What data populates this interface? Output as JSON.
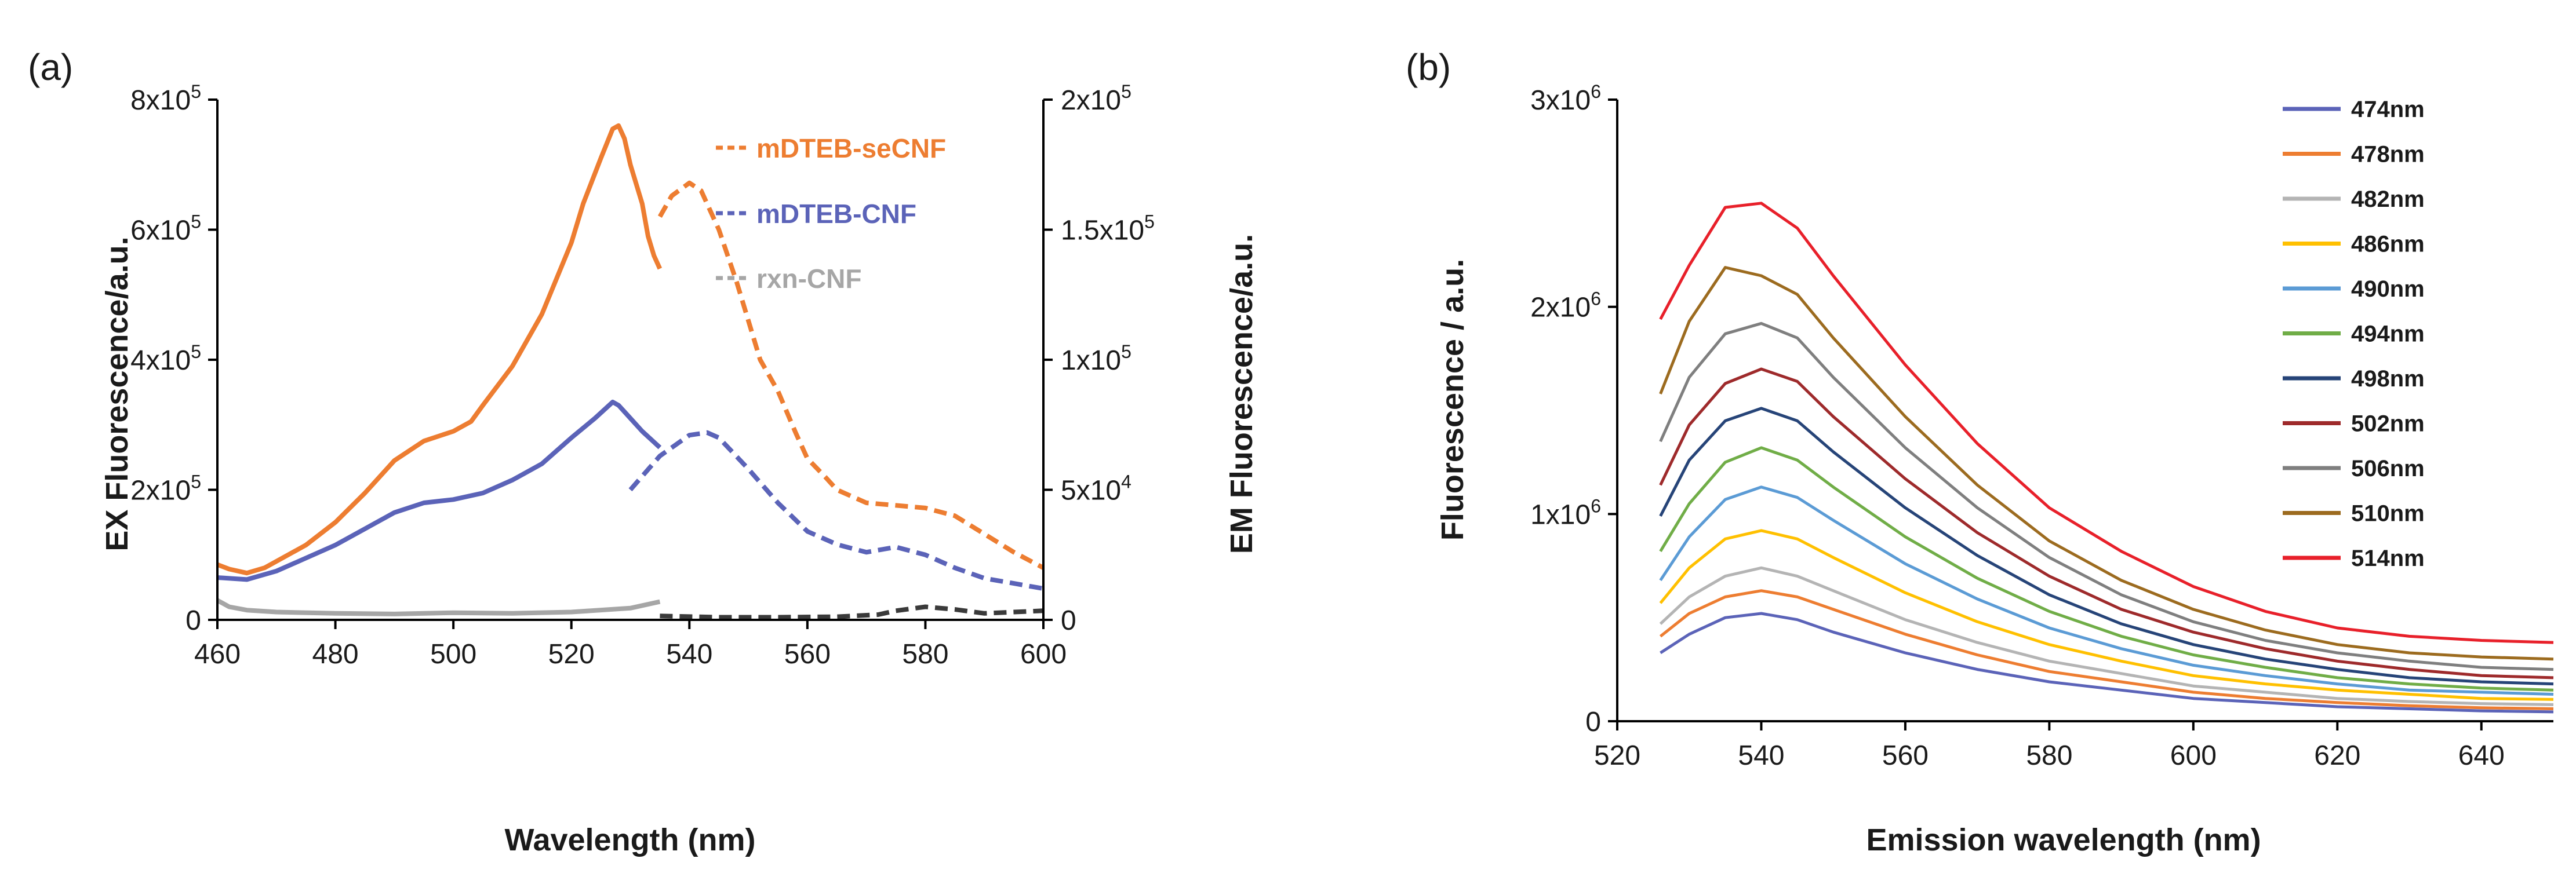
{
  "chart_data": [
    {
      "panel_label": "(a)",
      "type": "line",
      "title": "",
      "xlabel": "Wavelength (nm)",
      "ylabel": "EX Fluorescence/a.u.",
      "y2label": "EM Fluorescence/a.u.",
      "xlim": [
        460,
        600
      ],
      "ylim": [
        0,
        800000
      ],
      "y2lim": [
        0,
        200000
      ],
      "x_ticks": [
        "460",
        "480",
        "500",
        "520",
        "540",
        "560",
        "580",
        "600"
      ],
      "y_ticks": [
        {
          "value": 0,
          "base": "0",
          "exp": ""
        },
        {
          "value": 200000,
          "base": "2x10",
          "exp": "5"
        },
        {
          "value": 400000,
          "base": "4x10",
          "exp": "5"
        },
        {
          "value": 600000,
          "base": "6x10",
          "exp": "5"
        },
        {
          "value": 800000,
          "base": "8x10",
          "exp": "5"
        }
      ],
      "y2_ticks": [
        {
          "value": 0,
          "base": "0",
          "exp": ""
        },
        {
          "value": 50000,
          "base": "5x10",
          "exp": "4"
        },
        {
          "value": 100000,
          "base": "1x10",
          "exp": "5"
        },
        {
          "value": 150000,
          "base": "1.5x10",
          "exp": "5"
        },
        {
          "value": 200000,
          "base": "2x10",
          "exp": "5"
        }
      ],
      "legend": [
        {
          "name": "mDTEB-seCNF",
          "color": "#ED7D31"
        },
        {
          "name": "mDTEB-CNF",
          "color": "#5B63B8"
        },
        {
          "name": "rxn-CNF",
          "color": "#A6A6A6"
        }
      ],
      "series": [
        {
          "name": "mDTEB-seCNF excitation",
          "axis": "left",
          "style": "solid",
          "color": "#ED7D31",
          "x": [
            460,
            462,
            465,
            468,
            470,
            475,
            480,
            485,
            490,
            495,
            500,
            503,
            505,
            510,
            515,
            520,
            522,
            525,
            527,
            528,
            529,
            530,
            532,
            533,
            534,
            535
          ],
          "y": [
            85000,
            78000,
            72000,
            80000,
            90000,
            115000,
            150000,
            195000,
            245000,
            275000,
            290000,
            305000,
            330000,
            390000,
            470000,
            580000,
            640000,
            710000,
            755000,
            760000,
            740000,
            700000,
            640000,
            590000,
            560000,
            540000
          ]
        },
        {
          "name": "mDTEB-seCNF emission",
          "axis": "right",
          "style": "dashed",
          "color": "#ED7D31",
          "x": [
            535,
            537,
            540,
            542,
            545,
            548,
            550,
            552,
            555,
            558,
            560,
            563,
            565,
            570,
            575,
            580,
            585,
            590,
            595,
            600
          ],
          "y": [
            155000,
            163000,
            168000,
            165000,
            150000,
            130000,
            115000,
            100000,
            88000,
            72000,
            62000,
            55000,
            50000,
            45000,
            44000,
            43000,
            40000,
            33000,
            26000,
            20000
          ]
        },
        {
          "name": "mDTEB-CNF excitation",
          "axis": "left",
          "style": "solid",
          "color": "#5B63B8",
          "x": [
            460,
            465,
            470,
            475,
            480,
            485,
            490,
            495,
            500,
            505,
            510,
            515,
            520,
            524,
            527,
            528,
            530,
            532,
            535
          ],
          "y": [
            65000,
            62000,
            75000,
            95000,
            115000,
            140000,
            165000,
            180000,
            185000,
            195000,
            215000,
            240000,
            280000,
            310000,
            335000,
            330000,
            310000,
            290000,
            265000
          ]
        },
        {
          "name": "mDTEB-CNF emission",
          "axis": "right",
          "style": "dashed",
          "color": "#5B63B8",
          "x": [
            530,
            535,
            540,
            543,
            545,
            550,
            555,
            560,
            565,
            570,
            575,
            580,
            585,
            590,
            595,
            600
          ],
          "y": [
            50000,
            63000,
            71000,
            72000,
            70000,
            58000,
            45000,
            34000,
            29000,
            26000,
            28000,
            25000,
            20000,
            16000,
            14000,
            12000
          ]
        },
        {
          "name": "rxn-CNF excitation",
          "axis": "left",
          "style": "solid",
          "color": "#A6A6A6",
          "x": [
            460,
            462,
            465,
            470,
            480,
            490,
            500,
            510,
            520,
            530,
            535
          ],
          "y": [
            30000,
            20000,
            15000,
            12000,
            10000,
            9000,
            11000,
            10000,
            12000,
            18000,
            28000
          ]
        },
        {
          "name": "rxn-CNF emission",
          "axis": "right",
          "style": "dashed",
          "color": "#3A3A3A",
          "x": [
            535,
            545,
            555,
            565,
            572,
            575,
            580,
            585,
            590,
            595,
            600
          ],
          "y": [
            1500,
            1000,
            1000,
            1200,
            2000,
            3500,
            5000,
            4000,
            2500,
            3000,
            3500
          ]
        }
      ]
    },
    {
      "panel_label": "(b)",
      "type": "line",
      "title": "",
      "xlabel": "Emission wavelength (nm)",
      "ylabel": "Fluorescence / a.u.",
      "xlim": [
        520,
        650
      ],
      "ylim": [
        0,
        3000000
      ],
      "x_ticks": [
        "520",
        "540",
        "560",
        "580",
        "600",
        "620",
        "640"
      ],
      "y_ticks": [
        {
          "value": 0,
          "base": "0",
          "exp": ""
        },
        {
          "value": 1000000,
          "base": "1x10",
          "exp": "6"
        },
        {
          "value": 2000000,
          "base": "2x10",
          "exp": "6"
        },
        {
          "value": 3000000,
          "base": "3x10",
          "exp": "6"
        }
      ],
      "x": [
        526,
        530,
        535,
        540,
        545,
        550,
        560,
        570,
        580,
        590,
        600,
        610,
        620,
        630,
        640,
        650
      ],
      "series": [
        {
          "name": "474nm",
          "color": "#5B63B8",
          "values": [
            330000,
            420000,
            500000,
            520000,
            490000,
            430000,
            330000,
            250000,
            190000,
            150000,
            110000,
            90000,
            70000,
            60000,
            50000,
            45000
          ]
        },
        {
          "name": "478nm",
          "color": "#ED7D31",
          "values": [
            410000,
            520000,
            600000,
            630000,
            600000,
            540000,
            420000,
            320000,
            240000,
            190000,
            140000,
            110000,
            90000,
            75000,
            65000,
            60000
          ]
        },
        {
          "name": "482nm",
          "color": "#B4B4B4",
          "values": [
            470000,
            600000,
            700000,
            740000,
            700000,
            630000,
            490000,
            380000,
            290000,
            230000,
            170000,
            140000,
            110000,
            95000,
            85000,
            80000
          ]
        },
        {
          "name": "486nm",
          "color": "#FFC000",
          "values": [
            570000,
            740000,
            880000,
            920000,
            880000,
            790000,
            620000,
            480000,
            370000,
            290000,
            220000,
            180000,
            150000,
            130000,
            110000,
            105000
          ]
        },
        {
          "name": "490nm",
          "color": "#5B9BD5",
          "values": [
            680000,
            890000,
            1070000,
            1130000,
            1080000,
            970000,
            760000,
            590000,
            450000,
            350000,
            270000,
            220000,
            180000,
            150000,
            140000,
            130000
          ]
        },
        {
          "name": "494nm",
          "color": "#70AD47",
          "values": [
            820000,
            1050000,
            1250000,
            1320000,
            1260000,
            1130000,
            890000,
            690000,
            530000,
            410000,
            320000,
            260000,
            210000,
            180000,
            160000,
            150000
          ]
        },
        {
          "name": "498nm",
          "color": "#264478",
          "values": [
            990000,
            1260000,
            1450000,
            1510000,
            1450000,
            1300000,
            1030000,
            800000,
            610000,
            470000,
            370000,
            300000,
            250000,
            210000,
            190000,
            180000
          ]
        },
        {
          "name": "502nm",
          "color": "#9E2A2B",
          "values": [
            1140000,
            1430000,
            1630000,
            1700000,
            1640000,
            1470000,
            1170000,
            910000,
            700000,
            540000,
            430000,
            350000,
            290000,
            250000,
            220000,
            210000
          ]
        },
        {
          "name": "506nm",
          "color": "#7F7F7F",
          "values": [
            1350000,
            1660000,
            1870000,
            1920000,
            1850000,
            1660000,
            1320000,
            1030000,
            790000,
            610000,
            480000,
            390000,
            330000,
            290000,
            260000,
            250000
          ]
        },
        {
          "name": "510nm",
          "color": "#9C6B1F",
          "values": [
            1580000,
            1930000,
            2190000,
            2150000,
            2060000,
            1850000,
            1470000,
            1140000,
            870000,
            680000,
            540000,
            440000,
            370000,
            330000,
            310000,
            300000
          ]
        },
        {
          "name": "514nm",
          "color": "#E8202A",
          "values": [
            1940000,
            2200000,
            2480000,
            2500000,
            2380000,
            2150000,
            1720000,
            1340000,
            1030000,
            820000,
            650000,
            530000,
            450000,
            410000,
            390000,
            380000
          ]
        }
      ]
    }
  ]
}
